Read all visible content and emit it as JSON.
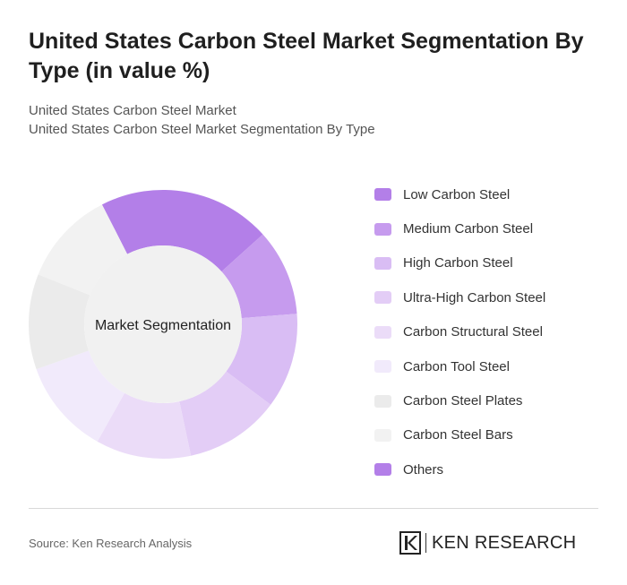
{
  "header": {
    "title": "United States Carbon Steel Market Segmentation By Type (in value %)",
    "subtitle_line1": "United States Carbon Steel Market",
    "subtitle_line2": "United States Carbon Steel Market Segmentation By Type"
  },
  "chart_data": {
    "type": "pie",
    "variant": "donut",
    "center_label": "Market Segmentation",
    "categories": [
      "Low Carbon Steel",
      "Medium Carbon Steel",
      "High Carbon Steel",
      "Ultra-High Carbon Steel",
      "Carbon Structural Steel",
      "Carbon Tool Steel",
      "Carbon Steel Plates",
      "Carbon Steel Bars",
      "Others"
    ],
    "values": [
      20,
      10,
      11,
      11,
      11,
      11,
      11,
      11,
      0
    ],
    "colors": [
      "#b37fe8",
      "#c69bee",
      "#d9bdf4",
      "#e3cdf6",
      "#ebdcf8",
      "#f1eafb",
      "#ebebeb",
      "#f2f2f2",
      "#b37fe8"
    ],
    "legend_position": "right"
  },
  "footer": {
    "source": "Source: Ken Research Analysis",
    "logo_text": "KEN RESEARCH"
  }
}
